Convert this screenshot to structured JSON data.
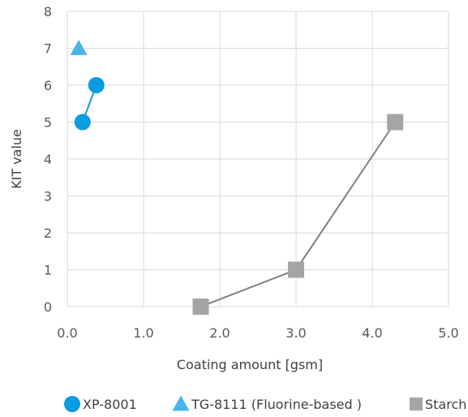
{
  "chart_data": {
    "type": "scatter",
    "title": "",
    "xlabel": "Coating amount [gsm]",
    "ylabel": "KIT value",
    "xlim": [
      0,
      5
    ],
    "ylim": [
      0,
      8
    ],
    "x_ticks": [
      "0.0",
      "1.0",
      "2.0",
      "3.0",
      "4.0",
      "5.0"
    ],
    "y_ticks": [
      "0",
      "1",
      "2",
      "3",
      "4",
      "5",
      "6",
      "7",
      "8"
    ],
    "grid": true,
    "legend_position": "bottom",
    "series": [
      {
        "name": "XP-8001",
        "marker": "circle",
        "color": "#0a9be0",
        "line": true,
        "x": [
          0.2,
          0.38
        ],
        "y": [
          5,
          6
        ]
      },
      {
        "name": "TG-8111 (Fluorine-based )",
        "marker": "triangle",
        "color": "#48b5e8",
        "line": false,
        "x": [
          0.15
        ],
        "y": [
          7
        ]
      },
      {
        "name": "Starch",
        "marker": "square",
        "color": "#a5a5a5",
        "line": true,
        "x": [
          1.75,
          3.0,
          4.3
        ],
        "y": [
          0,
          1,
          5
        ]
      }
    ]
  }
}
